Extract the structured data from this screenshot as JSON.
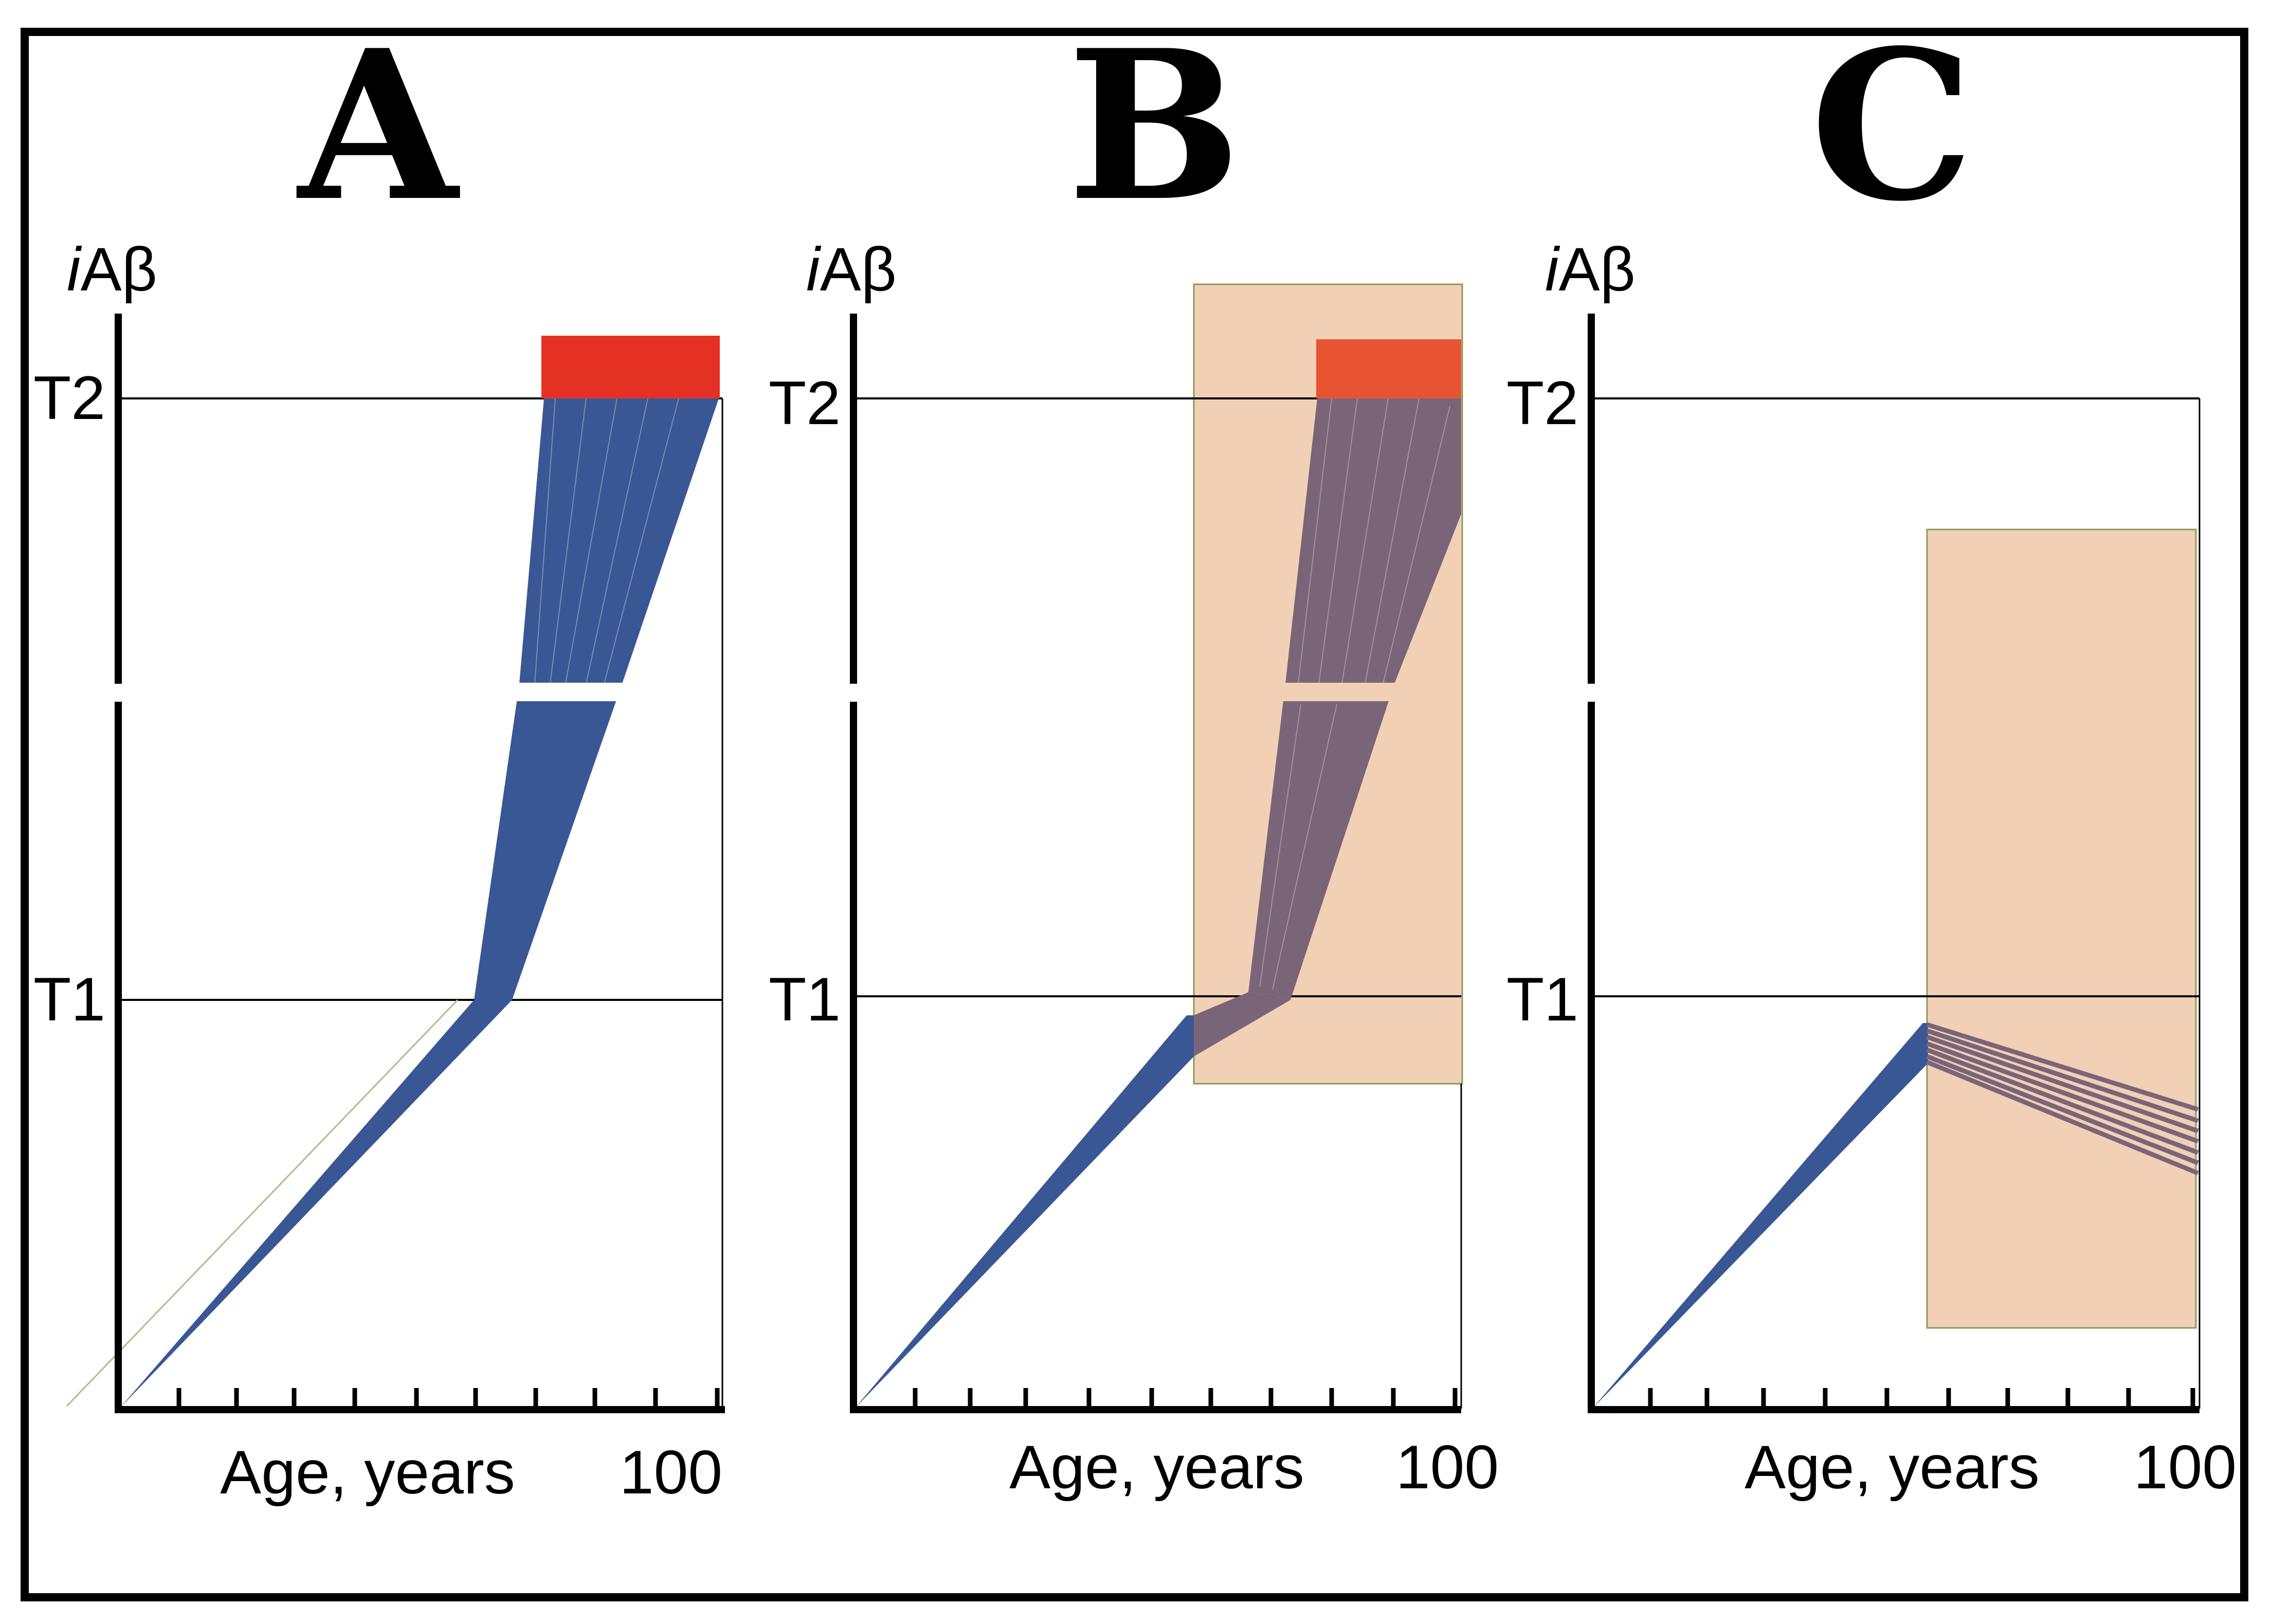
{
  "figure": {
    "colors": {
      "axis": "#000000",
      "threshold_line": "#000000",
      "trajectory_blue": "#3a5795",
      "trajectory_purple": "#7a6478",
      "disease_block_red": "#e53124",
      "disease_block_orange": "#e85431",
      "treatment_shade": "#f2d0b6",
      "treatment_border": "#8a9a5b"
    },
    "panels": [
      {
        "letter": "A",
        "y_axis_label_italic": "i",
        "y_axis_label_rest": "Aβ",
        "threshold_upper": "T2",
        "threshold_lower": "T1",
        "x_axis_label": "Age, years",
        "x_axis_max_label": "100",
        "treatment_region": "none",
        "disease_onset_block": "red"
      },
      {
        "letter": "B",
        "y_axis_label_italic": "i",
        "y_axis_label_rest": "Aβ",
        "threshold_upper": "T2",
        "threshold_lower": "T1",
        "x_axis_label": "Age, years",
        "x_axis_max_label": "100",
        "treatment_region": "shaded",
        "disease_onset_block": "orange"
      },
      {
        "letter": "C",
        "y_axis_label_italic": "i",
        "y_axis_label_rest": "Aβ",
        "threshold_upper": "T2",
        "threshold_lower": "T1",
        "x_axis_label": "Age, years",
        "x_axis_max_label": "100",
        "treatment_region": "shaded",
        "disease_onset_block": "none"
      }
    ]
  }
}
